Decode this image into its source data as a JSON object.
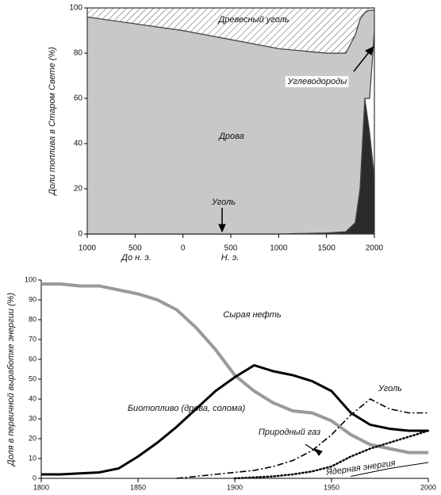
{
  "chart_data": [
    {
      "type": "stacked_area",
      "ylabel": "Доли топлива в Старом Свете (%)",
      "x": [
        -1000,
        -500,
        0,
        500,
        1000,
        1500,
        1700,
        1800,
        1850,
        1900,
        1950,
        2000
      ],
      "series": [
        {
          "name": "Уголь",
          "color": "#2b2b2b",
          "values": [
            0,
            0,
            0,
            0,
            0,
            0.5,
            1,
            5,
            20,
            60,
            45,
            25
          ]
        },
        {
          "name": "Углеводороды",
          "color": "#ffffff",
          "values": [
            0,
            0,
            0,
            0,
            0,
            0,
            0,
            0,
            0,
            0,
            15,
            65
          ]
        },
        {
          "name": "Дрова",
          "color": "#c8c8c8",
          "values": [
            96,
            93,
            90,
            86,
            82,
            79.5,
            79,
            83,
            75,
            38,
            39,
            9
          ]
        },
        {
          "name": "Древесный уголь",
          "color": "#ffffff",
          "hatch": true,
          "values": [
            4,
            7,
            10,
            14,
            18,
            20,
            20,
            12,
            5,
            2,
            1,
            1
          ]
        }
      ],
      "xlim": [
        -1000,
        2000
      ],
      "xticks": [
        {
          "value": -1000,
          "label": "1000"
        },
        {
          "value": -500,
          "label": "500"
        },
        0,
        500,
        1000,
        1500,
        2000
      ],
      "xnotes": [
        "До н. э.",
        "Н. э."
      ],
      "ylim": [
        0,
        100
      ],
      "yticks": [
        0,
        20,
        40,
        60,
        80,
        100
      ]
    },
    {
      "type": "line",
      "ylabel": "Доля в первичной выработке энергии (%)",
      "x": [
        1800,
        1810,
        1820,
        1830,
        1840,
        1850,
        1860,
        1870,
        1880,
        1890,
        1900,
        1910,
        1920,
        1930,
        1940,
        1950,
        1960,
        1970,
        1980,
        1990,
        2000
      ],
      "series": [
        {
          "name": "Биотопливо (дрова, солома)",
          "color": "#9a9a9a",
          "width": 4,
          "dash": "solid",
          "values": [
            98,
            98,
            97,
            97,
            95,
            93,
            90,
            85,
            76,
            65,
            52,
            44,
            38,
            34,
            33,
            29,
            22,
            17,
            15,
            13,
            13
          ]
        },
        {
          "name": "Уголь",
          "color": "#000000",
          "width": 3,
          "dash": "solid",
          "values": [
            2,
            2,
            2.5,
            3,
            5,
            11,
            18,
            26,
            35,
            44,
            51,
            57,
            54,
            52,
            49,
            44,
            33,
            27,
            25,
            24,
            24
          ]
        },
        {
          "name": "Природный газ",
          "color": "#000000",
          "width": 1.6,
          "dash": "dashdot",
          "values": [
            null,
            null,
            null,
            null,
            null,
            null,
            null,
            0,
            1,
            2,
            3,
            4,
            6,
            9,
            14,
            22,
            32,
            40,
            35,
            33,
            33
          ]
        },
        {
          "name": "Сырая нефть",
          "color": "#000000",
          "width": 2.5,
          "dash": "dotted",
          "values": [
            null,
            null,
            null,
            null,
            null,
            null,
            null,
            null,
            null,
            null,
            0,
            0.5,
            1,
            2,
            3.5,
            6,
            11,
            15,
            18,
            21,
            24
          ]
        },
        {
          "name": "Ядерная энергия",
          "color": "#000000",
          "width": 1,
          "dash": "solid",
          "values": [
            null,
            null,
            null,
            null,
            null,
            null,
            null,
            null,
            null,
            null,
            null,
            null,
            null,
            null,
            null,
            null,
            1,
            3,
            5,
            6.5,
            8
          ]
        }
      ],
      "xlim": [
        1800,
        2000
      ],
      "xticks": [
        1800,
        1850,
        1900,
        1950,
        2000
      ],
      "ylim": [
        0,
        100
      ],
      "yticks": [
        0,
        10,
        20,
        30,
        40,
        50,
        60,
        70,
        80,
        90,
        100
      ]
    }
  ]
}
